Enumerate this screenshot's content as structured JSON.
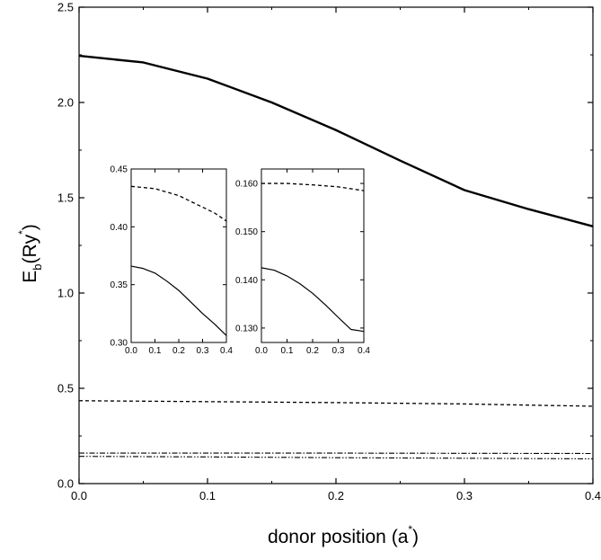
{
  "chart_data": [
    {
      "type": "line",
      "id": "main",
      "xlabel": {
        "main": "donor position (a",
        "sup": "*",
        "close": ")"
      },
      "ylabel": {
        "main": "E",
        "sub": "b",
        "mid": "(Ry",
        "sup": "*",
        "close": ")"
      },
      "xlim": [
        0.0,
        0.4
      ],
      "ylim": [
        0.0,
        2.5
      ],
      "xticks": [
        0.0,
        0.1,
        0.2,
        0.3,
        0.4
      ],
      "xtick_labels": [
        "0.0",
        "0.1",
        "0.2",
        "0.3",
        "0.4"
      ],
      "yticks": [
        0.0,
        0.5,
        1.0,
        1.5,
        2.0,
        2.5
      ],
      "ytick_labels": [
        "0.0",
        "0.5",
        "1.0",
        "1.5",
        "2.0",
        "2.5"
      ],
      "series": [
        {
          "style": "solid-thick",
          "x": [
            0.0,
            0.05,
            0.1,
            0.15,
            0.2,
            0.25,
            0.3,
            0.35,
            0.4
          ],
          "y": [
            2.245,
            2.21,
            2.125,
            2.0,
            1.855,
            1.695,
            1.54,
            1.44,
            1.35
          ]
        },
        {
          "style": "dashed",
          "x": [
            0.0,
            0.1,
            0.2,
            0.3,
            0.4
          ],
          "y": [
            0.435,
            0.43,
            0.425,
            0.418,
            0.406
          ]
        },
        {
          "style": "dash-dot",
          "x": [
            0.0,
            0.1,
            0.2,
            0.3,
            0.4
          ],
          "y": [
            0.16,
            0.16,
            0.16,
            0.159,
            0.158
          ]
        },
        {
          "style": "dash-dot-dot",
          "x": [
            0.0,
            0.1,
            0.2,
            0.3,
            0.4
          ],
          "y": [
            0.143,
            0.14,
            0.136,
            0.133,
            0.13
          ]
        }
      ]
    },
    {
      "type": "line",
      "id": "inset-left",
      "xlim": [
        0.0,
        0.4
      ],
      "ylim": [
        0.3,
        0.45
      ],
      "xticks": [
        0.0,
        0.1,
        0.2,
        0.3,
        0.4
      ],
      "xtick_labels": [
        "0.0",
        "0.1",
        "0.2",
        "0.3",
        "0.4"
      ],
      "yticks": [
        0.3,
        0.35,
        0.4,
        0.45
      ],
      "ytick_labels": [
        "0.30",
        "0.35",
        "0.40",
        "0.45"
      ],
      "series": [
        {
          "style": "dashed",
          "x": [
            0.0,
            0.05,
            0.1,
            0.15,
            0.2,
            0.25,
            0.3,
            0.35,
            0.4
          ],
          "y": [
            0.435,
            0.434,
            0.433,
            0.43,
            0.427,
            0.422,
            0.417,
            0.412,
            0.405
          ]
        },
        {
          "style": "solid",
          "x": [
            0.0,
            0.05,
            0.1,
            0.15,
            0.2,
            0.25,
            0.3,
            0.35,
            0.4
          ],
          "y": [
            0.366,
            0.364,
            0.36,
            0.353,
            0.345,
            0.335,
            0.325,
            0.316,
            0.306
          ]
        }
      ]
    },
    {
      "type": "line",
      "id": "inset-right",
      "xlim": [
        0.0,
        0.4
      ],
      "ylim": [
        0.127,
        0.163
      ],
      "xticks": [
        0.0,
        0.1,
        0.2,
        0.3,
        0.4
      ],
      "xtick_labels": [
        "0.0",
        "0.1",
        "0.2",
        "0.3",
        "0.4"
      ],
      "yticks": [
        0.13,
        0.14,
        0.15,
        0.16
      ],
      "ytick_labels": [
        "0.130",
        "0.140",
        "0.150",
        "0.160"
      ],
      "series": [
        {
          "style": "dashed",
          "x": [
            0.0,
            0.1,
            0.2,
            0.3,
            0.4
          ],
          "y": [
            0.16,
            0.16,
            0.1597,
            0.1593,
            0.1585
          ]
        },
        {
          "style": "solid",
          "x": [
            0.0,
            0.05,
            0.1,
            0.15,
            0.2,
            0.25,
            0.3,
            0.35,
            0.4
          ],
          "y": [
            0.1425,
            0.142,
            0.1408,
            0.1392,
            0.1372,
            0.1348,
            0.1322,
            0.1297,
            0.1293
          ]
        }
      ]
    }
  ]
}
